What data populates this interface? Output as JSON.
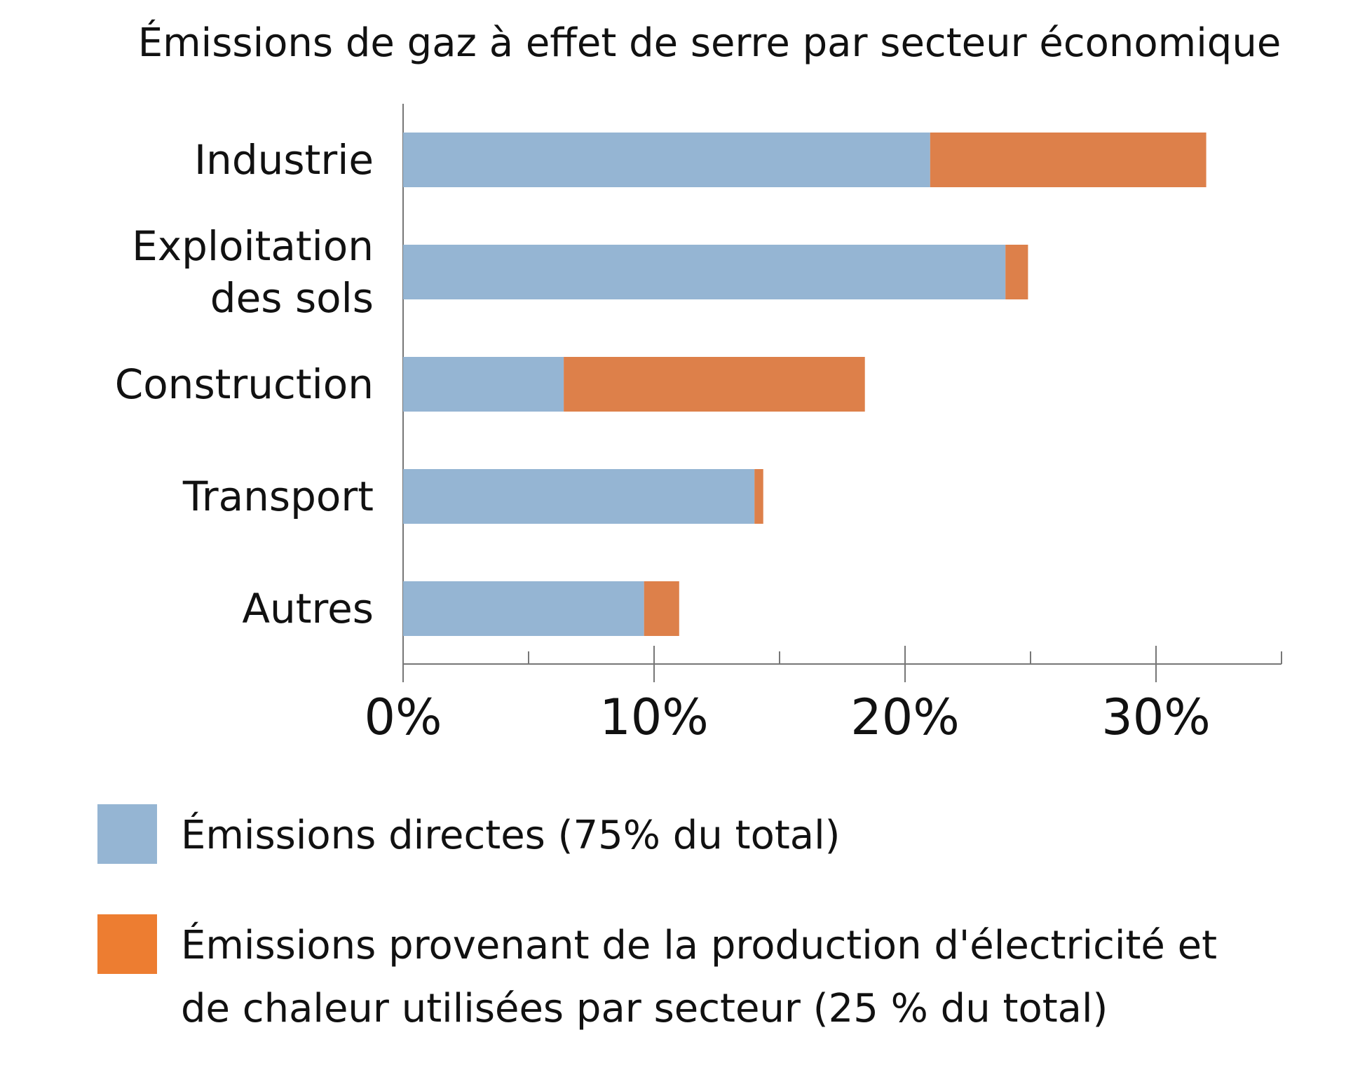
{
  "chart_data": {
    "type": "bar",
    "orientation": "horizontal",
    "stacked": true,
    "title": "Émissions de gaz à effet de serre par secteur économique",
    "categories": [
      [
        "Industrie"
      ],
      [
        "Exploitation",
        "des sols"
      ],
      [
        "Construction"
      ],
      [
        "Transport"
      ],
      [
        "Autres"
      ]
    ],
    "series": [
      {
        "name": [
          "Émissions directes (75% du total)"
        ],
        "color": "#95b5d3",
        "legend_color": "#95b5d3",
        "values": [
          21.0,
          24.0,
          6.4,
          14.0,
          9.6
        ]
      },
      {
        "name": [
          "Émissions provenant de la production d'électricité et",
          "de chaleur utilisées par secteur (25 % du total)"
        ],
        "color": "#dd804a",
        "legend_color": "#ed7d31",
        "values": [
          11.0,
          0.9,
          12.0,
          0.35,
          1.4
        ]
      }
    ],
    "xlim": [
      0,
      35
    ],
    "x_ticks": [
      0,
      10,
      20,
      30
    ],
    "x_tick_labels": [
      "0%",
      "10%",
      "20%",
      "30%"
    ],
    "x_minor_ticks": [
      5,
      15,
      25,
      35
    ],
    "grid": false,
    "legend_position": "bottom"
  }
}
